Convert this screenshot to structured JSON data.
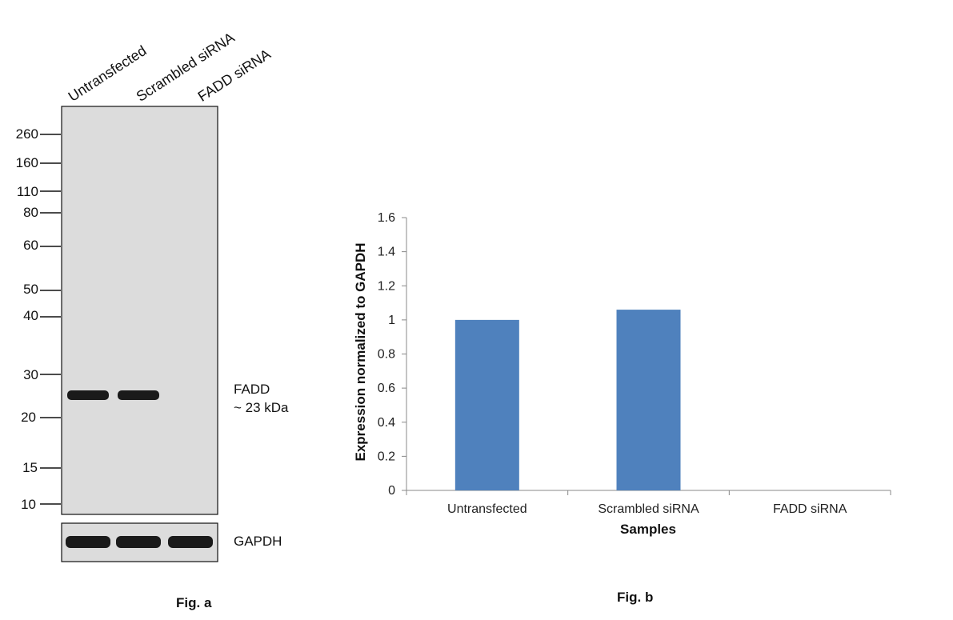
{
  "fig_a": {
    "caption": "Fig. a",
    "lane_labels": [
      "Untransfected",
      "Scrambled siRNA",
      "FADD siRNA"
    ],
    "marker_labels": [
      "260",
      "160",
      "110",
      "80",
      "60",
      "50",
      "40",
      "30",
      "20",
      "15",
      "10"
    ],
    "target_label_line1": "FADD",
    "target_label_line2": "~ 23 kDa",
    "loading_control_label": "GAPDH",
    "membrane_color": "#dcdcdc",
    "band_color": "#1a1a1a",
    "fadd_band_present": [
      true,
      true,
      false
    ],
    "gapdh_band_present": [
      true,
      true,
      true
    ]
  },
  "fig_b": {
    "caption": "Fig. b"
  },
  "chart_data": {
    "type": "bar",
    "categories": [
      "Untransfected",
      "Scrambled siRNA",
      "FADD siRNA"
    ],
    "values": [
      1.0,
      1.06,
      0
    ],
    "xlabel": "Samples",
    "ylabel": "Expression normalized to GAPDH",
    "ylim": [
      0,
      1.6
    ],
    "yticks": [
      "0",
      "0.2",
      "0.4",
      "0.6",
      "0.8",
      "1",
      "1.2",
      "1.4",
      "1.6"
    ],
    "bar_color": "#4f81bd",
    "grid": false,
    "legend": "none"
  }
}
